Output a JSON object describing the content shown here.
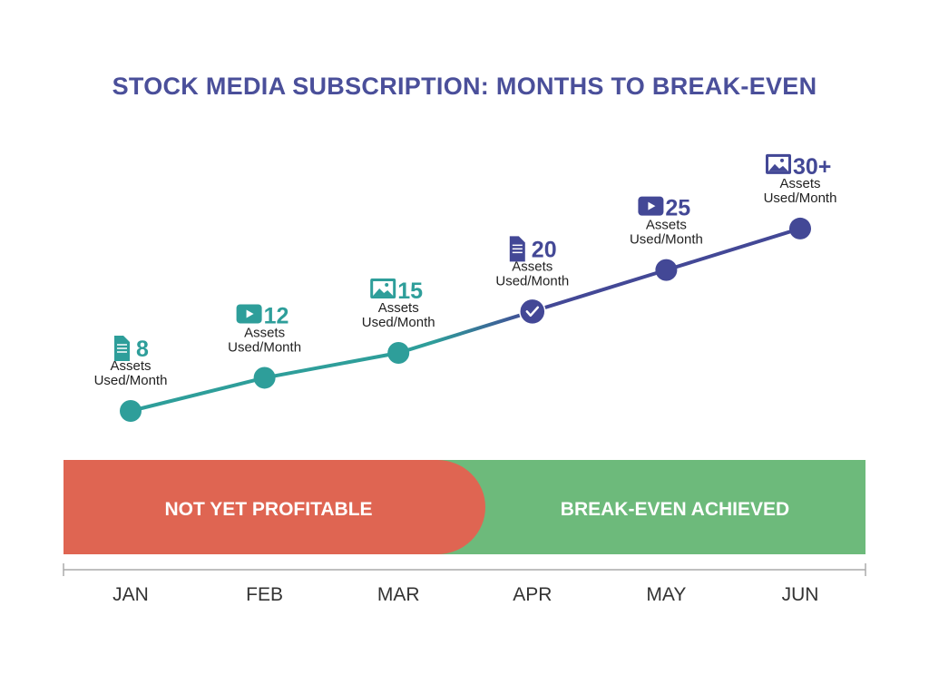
{
  "chart_data": {
    "type": "line",
    "title": "STOCK MEDIA SUBSCRIPTION: MONTHS TO BREAK-EVEN",
    "categories": [
      "JAN",
      "FEB",
      "MAR",
      "APR",
      "MAY",
      "JUN"
    ],
    "series": [
      {
        "values": [
          8,
          12,
          15,
          20,
          25,
          30
        ],
        "value_labels": [
          "8",
          "12",
          "15",
          "20",
          "25",
          "30+"
        ],
        "unit_label": [
          "Assets",
          "Used/Month"
        ],
        "icons": [
          "document-icon",
          "video-play-icon",
          "image-icon",
          "document-icon",
          "video-play-icon",
          "image-icon"
        ]
      }
    ],
    "break_even_index": 3,
    "zones": [
      {
        "label": "NOT YET PROFITABLE",
        "color": "#df6552"
      },
      {
        "label": "BREAK-EVEN ACHIEVED",
        "color": "#6dba7b"
      }
    ],
    "colors": {
      "start": "#2e9e9a",
      "end": "#434896",
      "title": "#4a4f9a"
    },
    "grid": false
  }
}
